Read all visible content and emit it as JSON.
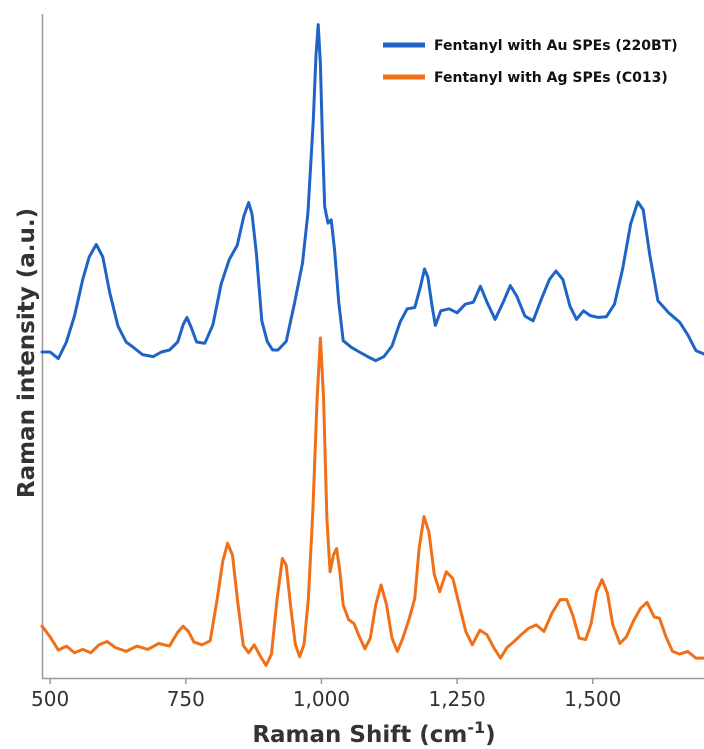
{
  "chart_data": {
    "type": "line",
    "xlabel": "Raman Shift (cm",
    "xlabel_sup": "-1",
    "xlabel_suffix": ")",
    "ylabel": "Raman intensity (a.u.)",
    "xlim": [
      485,
      1705
    ],
    "ylim": [
      0,
      1
    ],
    "y_ticks_shown": false,
    "grid": false,
    "legend_position": "top-right",
    "x_ticks": [
      500,
      750,
      1000,
      1250,
      1500
    ],
    "x_tick_labels": [
      "500",
      "750",
      "1,000",
      "1,250",
      "1,500"
    ],
    "series": [
      {
        "name": "Fentanyl with Au SPEs (220BT)",
        "color": "#1f63c6",
        "points": [
          [
            485,
            0.491
          ],
          [
            500,
            0.491
          ],
          [
            515,
            0.481
          ],
          [
            530,
            0.506
          ],
          [
            545,
            0.546
          ],
          [
            560,
            0.6
          ],
          [
            572,
            0.634
          ],
          [
            585,
            0.653
          ],
          [
            597,
            0.634
          ],
          [
            610,
            0.58
          ],
          [
            625,
            0.53
          ],
          [
            640,
            0.506
          ],
          [
            655,
            0.497
          ],
          [
            670,
            0.487
          ],
          [
            690,
            0.484
          ],
          [
            705,
            0.491
          ],
          [
            720,
            0.494
          ],
          [
            735,
            0.506
          ],
          [
            745,
            0.532
          ],
          [
            752,
            0.543
          ],
          [
            760,
            0.528
          ],
          [
            770,
            0.506
          ],
          [
            785,
            0.504
          ],
          [
            800,
            0.532
          ],
          [
            815,
            0.593
          ],
          [
            830,
            0.63
          ],
          [
            845,
            0.652
          ],
          [
            857,
            0.696
          ],
          [
            866,
            0.716
          ],
          [
            872,
            0.699
          ],
          [
            880,
            0.641
          ],
          [
            890,
            0.538
          ],
          [
            900,
            0.507
          ],
          [
            910,
            0.494
          ],
          [
            920,
            0.494
          ],
          [
            935,
            0.507
          ],
          [
            950,
            0.563
          ],
          [
            965,
            0.625
          ],
          [
            975,
            0.7
          ],
          [
            985,
            0.84
          ],
          [
            990,
            0.938
          ],
          [
            994,
            0.984
          ],
          [
            998,
            0.925
          ],
          [
            1002,
            0.808
          ],
          [
            1006,
            0.71
          ],
          [
            1012,
            0.685
          ],
          [
            1018,
            0.69
          ],
          [
            1024,
            0.646
          ],
          [
            1032,
            0.565
          ],
          [
            1040,
            0.508
          ],
          [
            1055,
            0.498
          ],
          [
            1070,
            0.491
          ],
          [
            1085,
            0.484
          ],
          [
            1100,
            0.478
          ],
          [
            1115,
            0.484
          ],
          [
            1130,
            0.5
          ],
          [
            1145,
            0.536
          ],
          [
            1158,
            0.556
          ],
          [
            1172,
            0.558
          ],
          [
            1182,
            0.588
          ],
          [
            1190,
            0.616
          ],
          [
            1196,
            0.604
          ],
          [
            1204,
            0.56
          ],
          [
            1210,
            0.531
          ],
          [
            1220,
            0.553
          ],
          [
            1235,
            0.556
          ],
          [
            1250,
            0.55
          ],
          [
            1265,
            0.563
          ],
          [
            1280,
            0.566
          ],
          [
            1293,
            0.59
          ],
          [
            1305,
            0.566
          ],
          [
            1320,
            0.54
          ],
          [
            1335,
            0.566
          ],
          [
            1348,
            0.591
          ],
          [
            1360,
            0.575
          ],
          [
            1375,
            0.545
          ],
          [
            1390,
            0.538
          ],
          [
            1405,
            0.57
          ],
          [
            1420,
            0.6
          ],
          [
            1432,
            0.613
          ],
          [
            1445,
            0.6
          ],
          [
            1458,
            0.56
          ],
          [
            1470,
            0.54
          ],
          [
            1483,
            0.553
          ],
          [
            1495,
            0.546
          ],
          [
            1510,
            0.543
          ],
          [
            1525,
            0.544
          ],
          [
            1540,
            0.563
          ],
          [
            1555,
            0.616
          ],
          [
            1570,
            0.684
          ],
          [
            1583,
            0.717
          ],
          [
            1593,
            0.705
          ],
          [
            1605,
            0.638
          ],
          [
            1620,
            0.568
          ],
          [
            1640,
            0.55
          ],
          [
            1660,
            0.536
          ],
          [
            1675,
            0.517
          ],
          [
            1690,
            0.493
          ],
          [
            1705,
            0.488
          ]
        ]
      },
      {
        "name": "Fentanyl with Ag SPEs (C013)",
        "color": "#f07018",
        "points": [
          [
            485,
            0.078
          ],
          [
            500,
            0.062
          ],
          [
            515,
            0.042
          ],
          [
            530,
            0.048
          ],
          [
            545,
            0.038
          ],
          [
            560,
            0.043
          ],
          [
            575,
            0.038
          ],
          [
            590,
            0.05
          ],
          [
            605,
            0.055
          ],
          [
            620,
            0.046
          ],
          [
            640,
            0.04
          ],
          [
            660,
            0.048
          ],
          [
            680,
            0.043
          ],
          [
            700,
            0.052
          ],
          [
            720,
            0.048
          ],
          [
            735,
            0.069
          ],
          [
            745,
            0.078
          ],
          [
            755,
            0.07
          ],
          [
            765,
            0.054
          ],
          [
            780,
            0.05
          ],
          [
            795,
            0.056
          ],
          [
            808,
            0.12
          ],
          [
            818,
            0.175
          ],
          [
            827,
            0.203
          ],
          [
            836,
            0.185
          ],
          [
            846,
            0.112
          ],
          [
            856,
            0.049
          ],
          [
            866,
            0.038
          ],
          [
            876,
            0.05
          ],
          [
            888,
            0.032
          ],
          [
            898,
            0.019
          ],
          [
            908,
            0.036
          ],
          [
            918,
            0.118
          ],
          [
            928,
            0.18
          ],
          [
            935,
            0.17
          ],
          [
            943,
            0.11
          ],
          [
            952,
            0.05
          ],
          [
            960,
            0.032
          ],
          [
            968,
            0.051
          ],
          [
            976,
            0.12
          ],
          [
            984,
            0.25
          ],
          [
            992,
            0.42
          ],
          [
            998,
            0.512
          ],
          [
            1004,
            0.42
          ],
          [
            1010,
            0.24
          ],
          [
            1016,
            0.16
          ],
          [
            1022,
            0.185
          ],
          [
            1028,
            0.195
          ],
          [
            1034,
            0.16
          ],
          [
            1040,
            0.11
          ],
          [
            1050,
            0.088
          ],
          [
            1060,
            0.082
          ],
          [
            1070,
            0.062
          ],
          [
            1080,
            0.044
          ],
          [
            1090,
            0.06
          ],
          [
            1100,
            0.11
          ],
          [
            1110,
            0.14
          ],
          [
            1120,
            0.11
          ],
          [
            1130,
            0.06
          ],
          [
            1140,
            0.04
          ],
          [
            1150,
            0.06
          ],
          [
            1162,
            0.09
          ],
          [
            1172,
            0.12
          ],
          [
            1180,
            0.195
          ],
          [
            1189,
            0.243
          ],
          [
            1198,
            0.22
          ],
          [
            1208,
            0.156
          ],
          [
            1218,
            0.13
          ],
          [
            1230,
            0.16
          ],
          [
            1242,
            0.15
          ],
          [
            1254,
            0.11
          ],
          [
            1266,
            0.07
          ],
          [
            1278,
            0.05
          ],
          [
            1292,
            0.072
          ],
          [
            1305,
            0.065
          ],
          [
            1318,
            0.045
          ],
          [
            1330,
            0.03
          ],
          [
            1342,
            0.046
          ],
          [
            1355,
            0.055
          ],
          [
            1368,
            0.065
          ],
          [
            1382,
            0.075
          ],
          [
            1396,
            0.08
          ],
          [
            1410,
            0.07
          ],
          [
            1425,
            0.098
          ],
          [
            1440,
            0.118
          ],
          [
            1452,
            0.118
          ],
          [
            1463,
            0.095
          ],
          [
            1475,
            0.06
          ],
          [
            1487,
            0.058
          ],
          [
            1497,
            0.082
          ],
          [
            1507,
            0.13
          ],
          [
            1517,
            0.148
          ],
          [
            1527,
            0.128
          ],
          [
            1537,
            0.08
          ],
          [
            1550,
            0.052
          ],
          [
            1562,
            0.062
          ],
          [
            1575,
            0.086
          ],
          [
            1588,
            0.105
          ],
          [
            1600,
            0.114
          ],
          [
            1613,
            0.092
          ],
          [
            1623,
            0.09
          ],
          [
            1635,
            0.062
          ],
          [
            1647,
            0.04
          ],
          [
            1660,
            0.036
          ],
          [
            1675,
            0.04
          ],
          [
            1690,
            0.03
          ],
          [
            1705,
            0.03
          ]
        ]
      }
    ]
  }
}
